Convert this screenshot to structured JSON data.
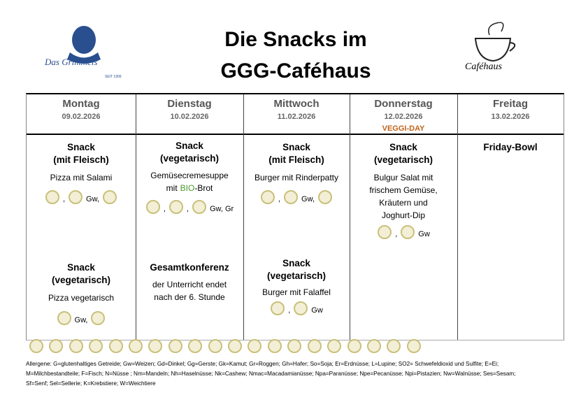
{
  "header": {
    "title_lines": [
      "Die Snacks im",
      "GGG-Caféhaus"
    ],
    "logo_left": {
      "name": "Das Grimmels",
      "tagline": "SEIT 1909"
    },
    "logo_right": "Caféhaus"
  },
  "table": {
    "days": [
      {
        "day": "Montag",
        "date": "09.02.2026"
      },
      {
        "day": "Dienstag",
        "date": "10.02.2026"
      },
      {
        "day": "Mittwoch",
        "date": "11.02.2026"
      },
      {
        "day": "Donnerstag",
        "date": "12.02.2026",
        "note": "VEGGI-DAY"
      },
      {
        "day": "Freitag",
        "date": "13.02.2026"
      }
    ],
    "cells": [
      [
        {
          "title": [
            "Snack",
            "(mit Fleisch)"
          ],
          "description": [
            "Pizza mit Salami"
          ],
          "allergens": [
            ",",
            "Gw,"
          ]
        },
        {
          "title": [
            "Snack",
            "(vegetarisch)"
          ],
          "description": [
            "Pizza vegetarisch"
          ],
          "allergens": [
            "Gw,"
          ]
        }
      ],
      [
        {
          "title": [
            "Snack",
            "(vegetarisch)"
          ],
          "description": [
            "Gemüsecremesuppe"
          ],
          "description_highlight": {
            "text": "mit",
            "highlight": "BIO",
            "rest": "-Brot"
          },
          "allergens": [
            ",",
            ",",
            "Gw, Gr"
          ]
        },
        {
          "title": [
            "Gesamtkonferenz"
          ],
          "description": [
            "der Unterricht endet",
            "nach der 6. Stunde"
          ]
        }
      ],
      [
        {
          "title": [
            "Snack",
            "(mit Fleisch)"
          ],
          "description": [
            "Burger mit Rinderpatty"
          ],
          "allergens": [
            ",",
            "Gw,"
          ]
        },
        {
          "title": [
            "Snack",
            "(vegetarisch)"
          ],
          "description": [
            "Burger mit Falaffel"
          ],
          "allergens": [
            ",",
            "Gw"
          ]
        }
      ],
      [
        {
          "title": [
            "Snack",
            "(vegetarisch)"
          ],
          "description": [
            "Bulgur Salat mit",
            "frischem Gemüse,",
            "Kräutern und",
            "Joghurt-Dip"
          ],
          "allergens": [
            ",",
            "Gw"
          ]
        }
      ],
      [
        {
          "title": [
            "Friday-Bowl"
          ]
        }
      ]
    ]
  },
  "legend": {
    "lines": [
      "Allergene: G=glutenhaltiges Getreide; Gw=Weizen; Gd=Dinkel; Gg=Gerste; Gk=Kamut; Gr=Roggen; Gh=Hafer; So=Soja; Er=Erdnüsse; L=Lupine; SO2= Schwefeldioxid und Sulfite; E=Ei;",
      "M=Milchbestandteile; F=Fisch; N=Nüsse ; Nm=Mandeln; Nh=Haselnüsse; Nk=Cashew; Nmac=Macadamianüsse; Npa=Paranüsse; Npe=Pecanüsse; Npi=Pistazien; Nw=Walnüsse; Ses=Sesam;",
      "Sf=Senf; Sel=Sellerie; K=Krebstiere; W=Weichtiere"
    ]
  }
}
